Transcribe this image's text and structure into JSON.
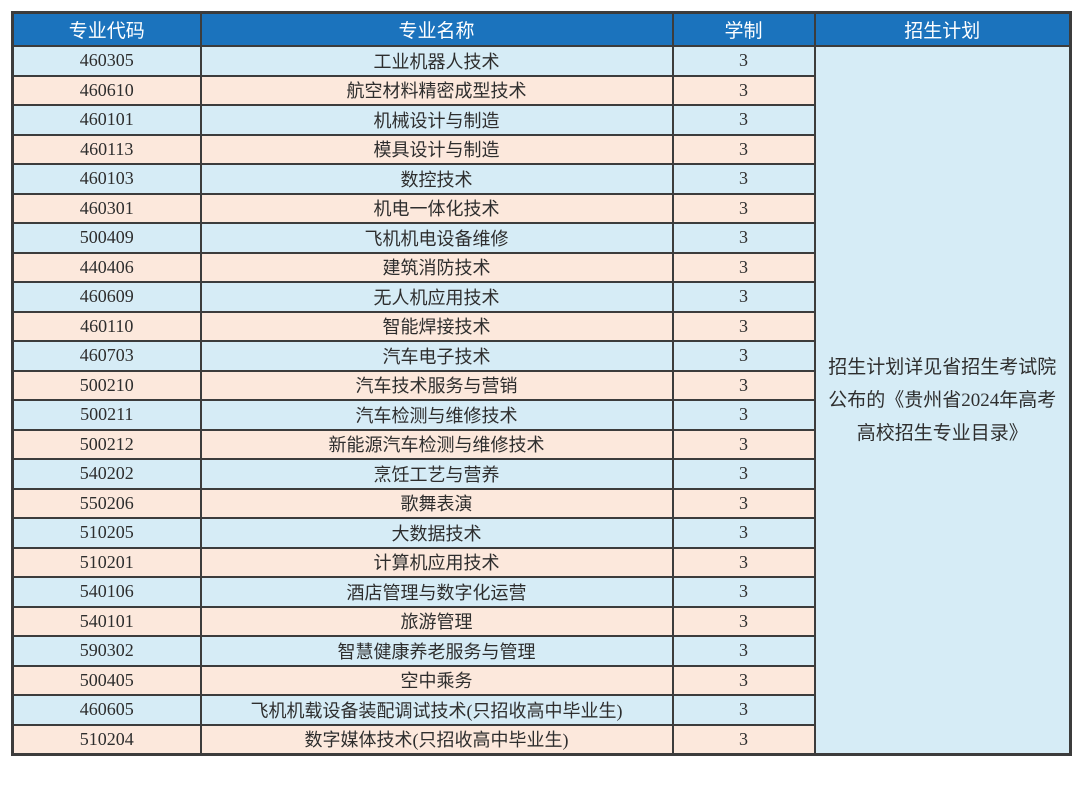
{
  "colors": {
    "header_bg": "#1b73bd",
    "header_text": "#ffffff",
    "row_blue_bg": "#d6ecf6",
    "row_peach_bg": "#fce8dc",
    "border": "#3c3c3c",
    "body_text": "#2e2e2e"
  },
  "table": {
    "headers": [
      "专业代码",
      "专业名称",
      "学制",
      "招生计划"
    ],
    "rows": [
      {
        "code": "460305",
        "name": "工业机器人技术",
        "years": "3"
      },
      {
        "code": "460610",
        "name": "航空材料精密成型技术",
        "years": "3"
      },
      {
        "code": "460101",
        "name": "机械设计与制造",
        "years": "3"
      },
      {
        "code": "460113",
        "name": "模具设计与制造",
        "years": "3"
      },
      {
        "code": "460103",
        "name": "数控技术",
        "years": "3"
      },
      {
        "code": "460301",
        "name": "机电一体化技术",
        "years": "3"
      },
      {
        "code": "500409",
        "name": "飞机机电设备维修",
        "years": "3"
      },
      {
        "code": "440406",
        "name": "建筑消防技术",
        "years": "3"
      },
      {
        "code": "460609",
        "name": "无人机应用技术",
        "years": "3"
      },
      {
        "code": "460110",
        "name": "智能焊接技术",
        "years": "3"
      },
      {
        "code": "460703",
        "name": "汽车电子技术",
        "years": "3"
      },
      {
        "code": "500210",
        "name": "汽车技术服务与营销",
        "years": "3"
      },
      {
        "code": "500211",
        "name": "汽车检测与维修技术",
        "years": "3"
      },
      {
        "code": "500212",
        "name": "新能源汽车检测与维修技术",
        "years": "3"
      },
      {
        "code": "540202",
        "name": "烹饪工艺与营养",
        "years": "3"
      },
      {
        "code": "550206",
        "name": "歌舞表演",
        "years": "3"
      },
      {
        "code": "510205",
        "name": "大数据技术",
        "years": "3"
      },
      {
        "code": "510201",
        "name": "计算机应用技术",
        "years": "3"
      },
      {
        "code": "540106",
        "name": "酒店管理与数字化运营",
        "years": "3"
      },
      {
        "code": "540101",
        "name": "旅游管理",
        "years": "3"
      },
      {
        "code": "590302",
        "name": "智慧健康养老服务与管理",
        "years": "3"
      },
      {
        "code": "500405",
        "name": "空中乘务",
        "years": "3"
      },
      {
        "code": "460605",
        "name": "飞机机载设备装配调试技术(只招收高中毕业生)",
        "years": "3"
      },
      {
        "code": "510204",
        "name": "数字媒体技术(只招收高中毕业生)",
        "years": "3"
      }
    ],
    "note": "招生计划详见省招生考试院\n公布的《贵州省2024年高考\n高校招生专业目录》"
  }
}
